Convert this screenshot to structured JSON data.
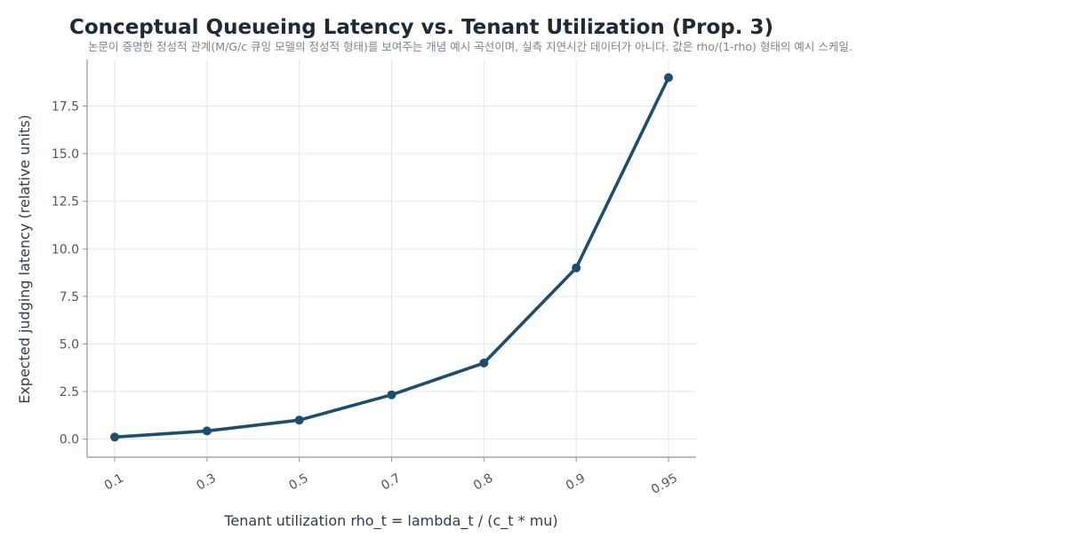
{
  "chart_data": {
    "type": "line",
    "title": "Conceptual Queueing Latency vs. Tenant Utilization (Prop. 3)",
    "subtitle": "논문이 증명한 정성적 관계(M/G/c 큐잉 모델의 정성적 형태)를 보여주는 개념 예시 곡선이며, 실측 지연시간 데이터가 아니다. 값은 rho/(1-rho) 형태의 예시 스케일.",
    "xlabel": "Tenant utilization rho_t = lambda_t / (c_t * mu)",
    "ylabel": "Expected judging latency (relative units)",
    "categories": [
      "0.1",
      "0.3",
      "0.5",
      "0.7",
      "0.8",
      "0.9",
      "0.95"
    ],
    "series": [
      {
        "values": [
          0.11,
          0.43,
          1.0,
          2.33,
          4.0,
          9.0,
          19.0
        ],
        "color": "#1d4e6e"
      }
    ],
    "ylim": [
      -0.95,
      19.95
    ],
    "yticks": [
      "0.0",
      "2.5",
      "5.0",
      "7.5",
      "10.0",
      "12.5",
      "15.0",
      "17.5"
    ],
    "grid": true,
    "legend": "none"
  }
}
